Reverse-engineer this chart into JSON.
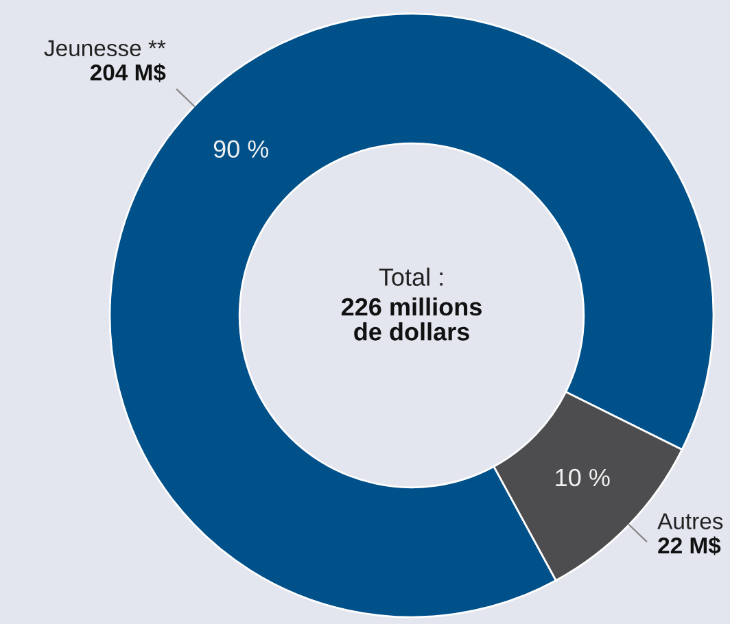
{
  "chart_data": {
    "type": "donut",
    "categories": [
      "Jeunesse **",
      "Autres"
    ],
    "values": [
      204,
      22
    ],
    "value_labels": [
      "204 M$",
      "22 M$"
    ],
    "colors": [
      "#00508a",
      "#4d4d4f"
    ],
    "annotations": [
      "Total :",
      "226 millions\nde dollars",
      {
        "text": "90 %",
        "x": "Jeunesse **"
      },
      {
        "text": "10 %",
        "x": "Autres"
      }
    ],
    "legend": false
  }
}
